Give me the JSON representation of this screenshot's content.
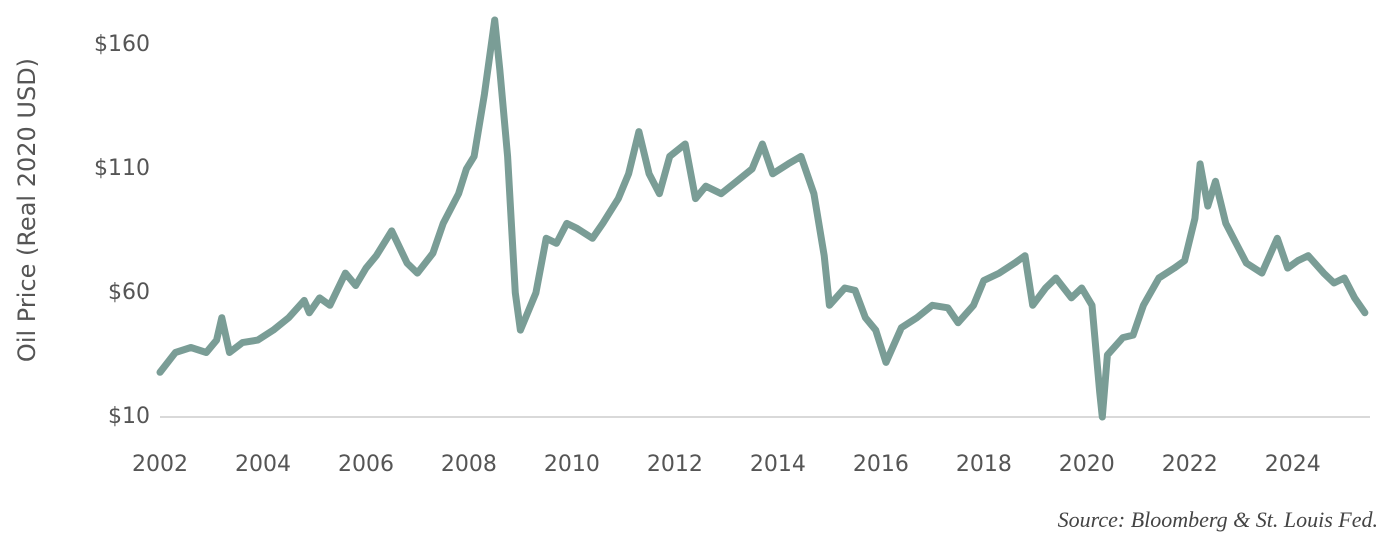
{
  "chart_data": {
    "type": "line",
    "y_axis_label": "Oil Price (Real 2020 USD)",
    "source": "Source: Bloomberg & St. Louis Fed.",
    "color": "#7a9d96",
    "x": [
      2002.0,
      2002.3,
      2002.6,
      2002.9,
      2003.1,
      2003.2,
      2003.35,
      2003.6,
      2003.9,
      2004.2,
      2004.5,
      2004.8,
      2004.9,
      2005.1,
      2005.3,
      2005.6,
      2005.8,
      2006.0,
      2006.2,
      2006.5,
      2006.8,
      2007.0,
      2007.3,
      2007.5,
      2007.8,
      2007.95,
      2008.1,
      2008.3,
      2008.5,
      2008.6,
      2008.75,
      2008.9,
      2009.0,
      2009.1,
      2009.3,
      2009.5,
      2009.7,
      2009.9,
      2010.1,
      2010.4,
      2010.6,
      2010.9,
      2011.1,
      2011.3,
      2011.5,
      2011.7,
      2011.9,
      2012.2,
      2012.4,
      2012.6,
      2012.9,
      2013.2,
      2013.5,
      2013.7,
      2013.9,
      2014.2,
      2014.45,
      2014.7,
      2014.9,
      2015.0,
      2015.3,
      2015.5,
      2015.7,
      2015.9,
      2016.1,
      2016.4,
      2016.7,
      2017.0,
      2017.3,
      2017.5,
      2017.8,
      2018.0,
      2018.3,
      2018.6,
      2018.8,
      2018.95,
      2019.2,
      2019.4,
      2019.7,
      2019.9,
      2020.1,
      2020.25,
      2020.3,
      2020.4,
      2020.7,
      2020.9,
      2021.1,
      2021.4,
      2021.7,
      2021.9,
      2022.1,
      2022.2,
      2022.35,
      2022.5,
      2022.7,
      2022.9,
      2023.1,
      2023.4,
      2023.7,
      2023.9,
      2024.1,
      2024.3,
      2024.6,
      2024.8,
      2025.0,
      2025.2,
      2025.4
    ],
    "values": [
      28,
      36,
      38,
      36,
      41,
      50,
      36,
      40,
      41,
      45,
      50,
      57,
      52,
      58,
      55,
      68,
      63,
      70,
      75,
      85,
      72,
      68,
      76,
      88,
      100,
      110,
      115,
      140,
      170,
      150,
      115,
      60,
      45,
      50,
      60,
      82,
      80,
      88,
      86,
      82,
      88,
      98,
      108,
      125,
      108,
      100,
      115,
      120,
      98,
      103,
      100,
      105,
      110,
      120,
      108,
      112,
      115,
      100,
      75,
      55,
      62,
      61,
      50,
      45,
      32,
      46,
      50,
      55,
      54,
      48,
      55,
      65,
      68,
      72,
      75,
      55,
      62,
      66,
      58,
      62,
      55,
      20,
      10,
      35,
      42,
      43,
      55,
      66,
      70,
      73,
      90,
      112,
      95,
      105,
      88,
      80,
      72,
      68,
      82,
      70,
      73,
      75,
      68,
      64,
      66,
      58,
      52
    ],
    "xlim": [
      2002,
      2025.5
    ],
    "xticks": [
      2002,
      2004,
      2006,
      2008,
      2010,
      2012,
      2014,
      2016,
      2018,
      2020,
      2022,
      2024
    ],
    "ylim": [
      10,
      172
    ],
    "yticks": [
      {
        "value": 10,
        "label": "$10"
      },
      {
        "value": 60,
        "label": "$60"
      },
      {
        "value": 110,
        "label": "$110"
      },
      {
        "value": 160,
        "label": "$160"
      }
    ]
  }
}
